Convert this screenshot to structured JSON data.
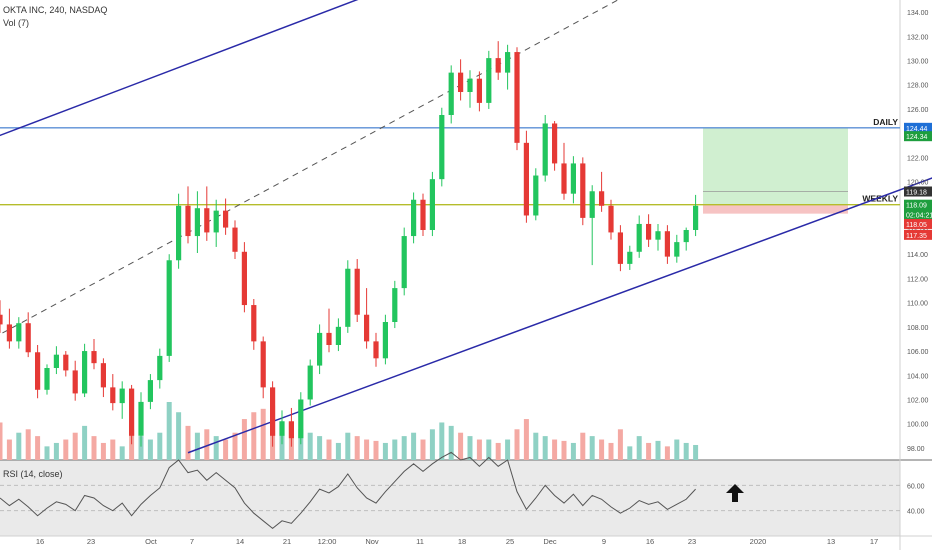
{
  "header": {
    "symbol_line": "OKTA INC, 240, NASDAQ",
    "volume_line": "Vol (7)",
    "rsi_line": "RSI (14, close)"
  },
  "chart_data": {
    "type": "candlestick",
    "title": "OKTA INC, 240, NASDAQ",
    "price_range": [
      97,
      135
    ],
    "y_ticks": [
      98,
      100,
      102,
      104,
      106,
      108,
      110,
      112,
      114,
      116,
      118,
      120,
      122,
      124,
      126,
      128,
      130,
      132,
      134
    ],
    "x_tick_labels": [
      "16",
      "23",
      "Oct",
      "7",
      "14",
      "21",
      "12:00",
      "Nov",
      "11",
      "18",
      "25",
      "Dec",
      "9",
      "16",
      "23",
      "2020",
      "13",
      "17"
    ],
    "horizontal_levels": [
      {
        "label": "DAILY",
        "price": 124.44,
        "color": "#5b8fd6",
        "badge_color": "#1e6fd6"
      },
      {
        "label": "WEEKLY",
        "price": 118.09,
        "color": "#b5bd2b",
        "badge_color": "#4caf50"
      }
    ],
    "price_badges": [
      {
        "text": "124.44",
        "price": 124.44,
        "color": "#1e6fd6"
      },
      {
        "text": "124.34",
        "price": 123.75,
        "color": "#1e9e3e"
      },
      {
        "text": "119.18",
        "price": 119.18,
        "color": "#333333"
      },
      {
        "text": "118.09",
        "price": 118.09,
        "color": "#1e9e3e"
      },
      {
        "text": "02:04:21",
        "price": 117.3,
        "color": "#1e9e3e"
      },
      {
        "text": "118.05",
        "price": 116.5,
        "color": "#e53935"
      },
      {
        "text": "117.35",
        "price": 115.6,
        "color": "#e53935"
      }
    ],
    "position_tool": {
      "entry": 118.09,
      "target": 124.44,
      "stop": 117.35
    },
    "channel": {
      "upper_line": {
        "from": [
          -17,
          118.8
        ],
        "to": [
          44,
          136.8
        ]
      },
      "middle_line_dashed": {
        "from": [
          -9,
          103.6
        ],
        "to": [
          70,
          136.8
        ]
      },
      "lower_line": {
        "from": [
          20,
          97.6
        ],
        "to": [
          110,
          123.4
        ]
      }
    },
    "candles": [
      {
        "o": 109.0,
        "h": 110.2,
        "l": 107.5,
        "c": 108.2
      },
      {
        "o": 108.2,
        "h": 109.5,
        "l": 106.2,
        "c": 106.8
      },
      {
        "o": 106.8,
        "h": 108.8,
        "l": 106.2,
        "c": 108.3
      },
      {
        "o": 108.3,
        "h": 109.2,
        "l": 105.5,
        "c": 105.9
      },
      {
        "o": 105.9,
        "h": 106.5,
        "l": 102.1,
        "c": 102.8
      },
      {
        "o": 102.8,
        "h": 104.9,
        "l": 102.4,
        "c": 104.6
      },
      {
        "o": 104.6,
        "h": 106.4,
        "l": 104.1,
        "c": 105.7
      },
      {
        "o": 105.7,
        "h": 106.0,
        "l": 103.9,
        "c": 104.4
      },
      {
        "o": 104.4,
        "h": 105.2,
        "l": 101.9,
        "c": 102.5
      },
      {
        "o": 102.5,
        "h": 106.6,
        "l": 102.2,
        "c": 106.0
      },
      {
        "o": 106.0,
        "h": 107.0,
        "l": 104.5,
        "c": 105.0
      },
      {
        "o": 105.0,
        "h": 105.4,
        "l": 102.2,
        "c": 103.0
      },
      {
        "o": 103.0,
        "h": 104.1,
        "l": 101.1,
        "c": 101.7
      },
      {
        "o": 101.7,
        "h": 103.5,
        "l": 100.4,
        "c": 102.9
      },
      {
        "o": 102.9,
        "h": 103.2,
        "l": 98.3,
        "c": 99.0
      },
      {
        "o": 99.0,
        "h": 102.6,
        "l": 98.1,
        "c": 101.8
      },
      {
        "o": 101.8,
        "h": 104.1,
        "l": 101.2,
        "c": 103.6
      },
      {
        "o": 103.6,
        "h": 106.2,
        "l": 102.9,
        "c": 105.6
      },
      {
        "o": 105.6,
        "h": 114.0,
        "l": 105.1,
        "c": 113.5
      },
      {
        "o": 113.5,
        "h": 119.0,
        "l": 112.8,
        "c": 118.0
      },
      {
        "o": 118.0,
        "h": 119.6,
        "l": 114.9,
        "c": 115.5
      },
      {
        "o": 115.5,
        "h": 119.2,
        "l": 114.1,
        "c": 117.8
      },
      {
        "o": 117.8,
        "h": 119.6,
        "l": 115.1,
        "c": 115.8
      },
      {
        "o": 115.8,
        "h": 118.5,
        "l": 114.6,
        "c": 117.6
      },
      {
        "o": 117.6,
        "h": 118.6,
        "l": 115.6,
        "c": 116.2
      },
      {
        "o": 116.2,
        "h": 116.8,
        "l": 113.6,
        "c": 114.2
      },
      {
        "o": 114.2,
        "h": 115.0,
        "l": 109.2,
        "c": 109.8
      },
      {
        "o": 109.8,
        "h": 110.3,
        "l": 106.1,
        "c": 106.8
      },
      {
        "o": 106.8,
        "h": 107.2,
        "l": 102.1,
        "c": 103.0
      },
      {
        "o": 103.0,
        "h": 103.5,
        "l": 98.1,
        "c": 99.0
      },
      {
        "o": 99.0,
        "h": 101.1,
        "l": 98.3,
        "c": 100.2
      },
      {
        "o": 100.2,
        "h": 101.3,
        "l": 98.1,
        "c": 98.8
      },
      {
        "o": 98.8,
        "h": 102.6,
        "l": 98.3,
        "c": 102.0
      },
      {
        "o": 102.0,
        "h": 105.3,
        "l": 101.5,
        "c": 104.8
      },
      {
        "o": 104.8,
        "h": 108.2,
        "l": 104.1,
        "c": 107.5
      },
      {
        "o": 107.5,
        "h": 109.5,
        "l": 105.9,
        "c": 106.5
      },
      {
        "o": 106.5,
        "h": 108.7,
        "l": 106.0,
        "c": 108.0
      },
      {
        "o": 108.0,
        "h": 113.5,
        "l": 107.5,
        "c": 112.8
      },
      {
        "o": 112.8,
        "h": 113.6,
        "l": 108.4,
        "c": 109.0
      },
      {
        "o": 109.0,
        "h": 111.2,
        "l": 106.2,
        "c": 106.8
      },
      {
        "o": 106.8,
        "h": 107.5,
        "l": 104.7,
        "c": 105.4
      },
      {
        "o": 105.4,
        "h": 109.0,
        "l": 104.9,
        "c": 108.4
      },
      {
        "o": 108.4,
        "h": 111.8,
        "l": 107.9,
        "c": 111.2
      },
      {
        "o": 111.2,
        "h": 116.2,
        "l": 110.6,
        "c": 115.5
      },
      {
        "o": 115.5,
        "h": 119.1,
        "l": 114.9,
        "c": 118.5
      },
      {
        "o": 118.5,
        "h": 119.0,
        "l": 115.5,
        "c": 116.0
      },
      {
        "o": 116.0,
        "h": 120.8,
        "l": 115.5,
        "c": 120.2
      },
      {
        "o": 120.2,
        "h": 126.1,
        "l": 119.6,
        "c": 125.5
      },
      {
        "o": 125.5,
        "h": 129.6,
        "l": 124.8,
        "c": 129.0
      },
      {
        "o": 129.0,
        "h": 130.1,
        "l": 126.7,
        "c": 127.4
      },
      {
        "o": 127.4,
        "h": 129.2,
        "l": 126.1,
        "c": 128.5
      },
      {
        "o": 128.5,
        "h": 129.1,
        "l": 125.8,
        "c": 126.5
      },
      {
        "o": 126.5,
        "h": 130.8,
        "l": 126.0,
        "c": 130.2
      },
      {
        "o": 130.2,
        "h": 131.6,
        "l": 128.4,
        "c": 129.0
      },
      {
        "o": 129.0,
        "h": 131.3,
        "l": 127.6,
        "c": 130.7
      },
      {
        "o": 130.7,
        "h": 131.1,
        "l": 122.6,
        "c": 123.2
      },
      {
        "o": 123.2,
        "h": 124.2,
        "l": 116.6,
        "c": 117.2
      },
      {
        "o": 117.2,
        "h": 121.1,
        "l": 116.8,
        "c": 120.5
      },
      {
        "o": 120.5,
        "h": 125.5,
        "l": 120.0,
        "c": 124.8
      },
      {
        "o": 124.8,
        "h": 125.0,
        "l": 120.9,
        "c": 121.5
      },
      {
        "o": 121.5,
        "h": 123.2,
        "l": 118.5,
        "c": 119.0
      },
      {
        "o": 119.0,
        "h": 122.1,
        "l": 118.2,
        "c": 121.5
      },
      {
        "o": 121.5,
        "h": 122.0,
        "l": 116.4,
        "c": 117.0
      },
      {
        "o": 117.0,
        "h": 119.7,
        "l": 113.1,
        "c": 119.2
      },
      {
        "o": 119.2,
        "h": 120.8,
        "l": 117.5,
        "c": 118.0
      },
      {
        "o": 118.0,
        "h": 118.5,
        "l": 115.2,
        "c": 115.8
      },
      {
        "o": 115.8,
        "h": 116.4,
        "l": 112.6,
        "c": 113.2
      },
      {
        "o": 113.2,
        "h": 114.7,
        "l": 112.7,
        "c": 114.2
      },
      {
        "o": 114.2,
        "h": 117.2,
        "l": 113.7,
        "c": 116.5
      },
      {
        "o": 116.5,
        "h": 117.3,
        "l": 114.6,
        "c": 115.2
      },
      {
        "o": 115.2,
        "h": 116.5,
        "l": 114.3,
        "c": 115.9
      },
      {
        "o": 115.9,
        "h": 116.4,
        "l": 113.2,
        "c": 113.8
      },
      {
        "o": 113.8,
        "h": 115.6,
        "l": 113.3,
        "c": 115.0
      },
      {
        "o": 115.0,
        "h": 116.2,
        "l": 114.3,
        "c": 116.0
      },
      {
        "o": 116.0,
        "h": 118.9,
        "l": 115.5,
        "c": 118.0
      }
    ],
    "volume": [
      55,
      30,
      40,
      45,
      35,
      20,
      25,
      30,
      40,
      50,
      35,
      25,
      30,
      20,
      45,
      35,
      30,
      40,
      85,
      70,
      50,
      40,
      45,
      35,
      30,
      40,
      60,
      70,
      75,
      80,
      50,
      55,
      45,
      40,
      35,
      30,
      25,
      40,
      35,
      30,
      28,
      25,
      30,
      35,
      40,
      30,
      45,
      55,
      50,
      40,
      35,
      30,
      30,
      25,
      30,
      45,
      60,
      40,
      35,
      30,
      28,
      25,
      40,
      35,
      30,
      25,
      45,
      20,
      35,
      25,
      28,
      20,
      30,
      25,
      22
    ],
    "rsi": {
      "label": "RSI (14, close)",
      "range": [
        20,
        80
      ],
      "ticks": [
        40,
        60
      ],
      "values": [
        50,
        44,
        49,
        43,
        36,
        42,
        47,
        45,
        40,
        52,
        50,
        44,
        40,
        46,
        36,
        45,
        52,
        58,
        74,
        80,
        70,
        72,
        64,
        70,
        64,
        58,
        46,
        38,
        32,
        26,
        32,
        30,
        38,
        47,
        57,
        54,
        59,
        69,
        58,
        50,
        46,
        55,
        63,
        71,
        77,
        71,
        77,
        82,
        86,
        80,
        82,
        75,
        82,
        75,
        80,
        55,
        41,
        50,
        60,
        52,
        46,
        53,
        44,
        52,
        49,
        43,
        38,
        42,
        48,
        45,
        47,
        41,
        45,
        49,
        57
      ]
    },
    "annotation": "up-arrow"
  }
}
